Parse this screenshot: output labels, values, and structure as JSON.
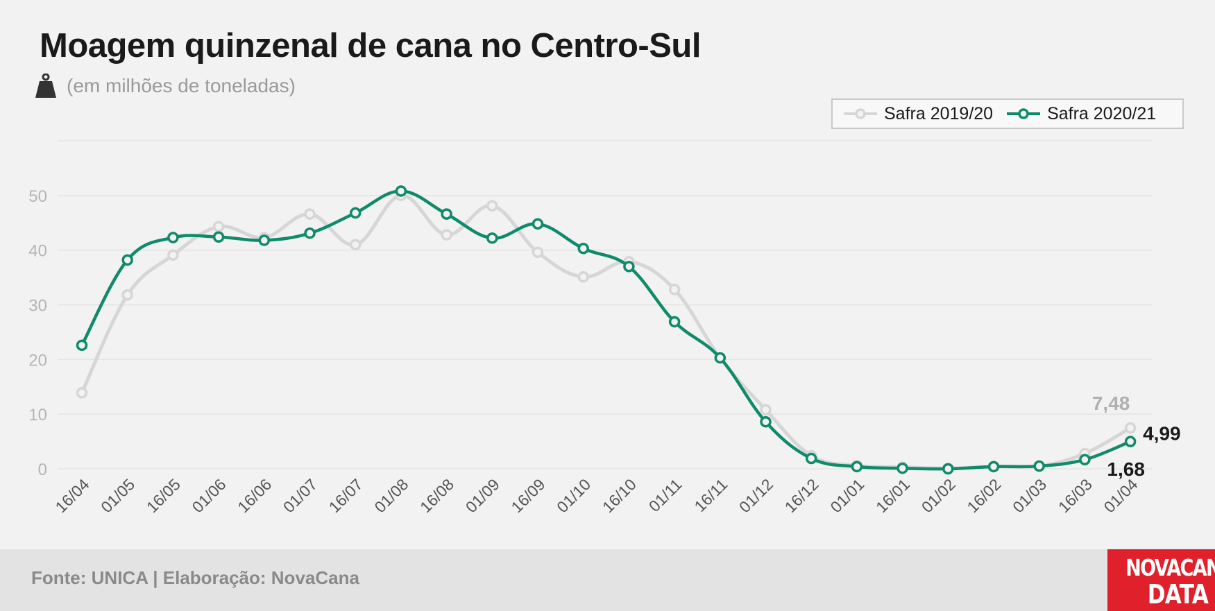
{
  "header": {
    "title": "Moagem quinzenal de cana no Centro-Sul",
    "subtitle": "(em milhões de toneladas)",
    "icon": "weight-icon"
  },
  "footer": {
    "source": "Fonte: UNICA | Elaboração: NovaCana",
    "logo_line1": "NOVACANA",
    "logo_line2": "DATA"
  },
  "colors": {
    "series_2019": "#d6d6d6",
    "series_2020": "#0f8a6a",
    "logo_bg": "#e0202a"
  },
  "chart_data": {
    "type": "line",
    "title": "Moagem quinzenal de cana no Centro-Sul",
    "ylabel": "",
    "xlabel": "",
    "ylim": [
      0,
      60
    ],
    "yticks": [
      0,
      10,
      20,
      30,
      40,
      50
    ],
    "grid": true,
    "legend_position": "top-right",
    "categories": [
      "16/04",
      "01/05",
      "16/05",
      "01/06",
      "16/06",
      "01/07",
      "16/07",
      "01/08",
      "16/08",
      "01/09",
      "16/09",
      "01/10",
      "16/10",
      "01/11",
      "16/11",
      "01/12",
      "16/12",
      "01/01",
      "16/01",
      "01/02",
      "16/02",
      "01/03",
      "16/03",
      "01/04"
    ],
    "series": [
      {
        "name": "Safra 2019/20",
        "values": [
          13.9,
          31.8,
          39.1,
          44.3,
          42.3,
          46.6,
          41.0,
          50.0,
          42.8,
          48.1,
          39.6,
          35.1,
          37.9,
          32.8,
          20.3,
          10.8,
          2.4,
          0.6,
          0.3,
          0.1,
          0.4,
          0.5,
          2.8,
          7.48
        ],
        "end_label": "7,48"
      },
      {
        "name": "Safra 2020/21",
        "values": [
          22.6,
          38.2,
          42.3,
          42.4,
          41.8,
          43.1,
          46.8,
          50.8,
          46.6,
          42.2,
          44.8,
          40.3,
          37.0,
          26.9,
          20.3,
          8.6,
          1.9,
          0.4,
          0.1,
          0.0,
          0.4,
          0.5,
          1.68,
          4.99
        ],
        "end_label": "4,99",
        "label_second_last": "1,68"
      }
    ]
  }
}
